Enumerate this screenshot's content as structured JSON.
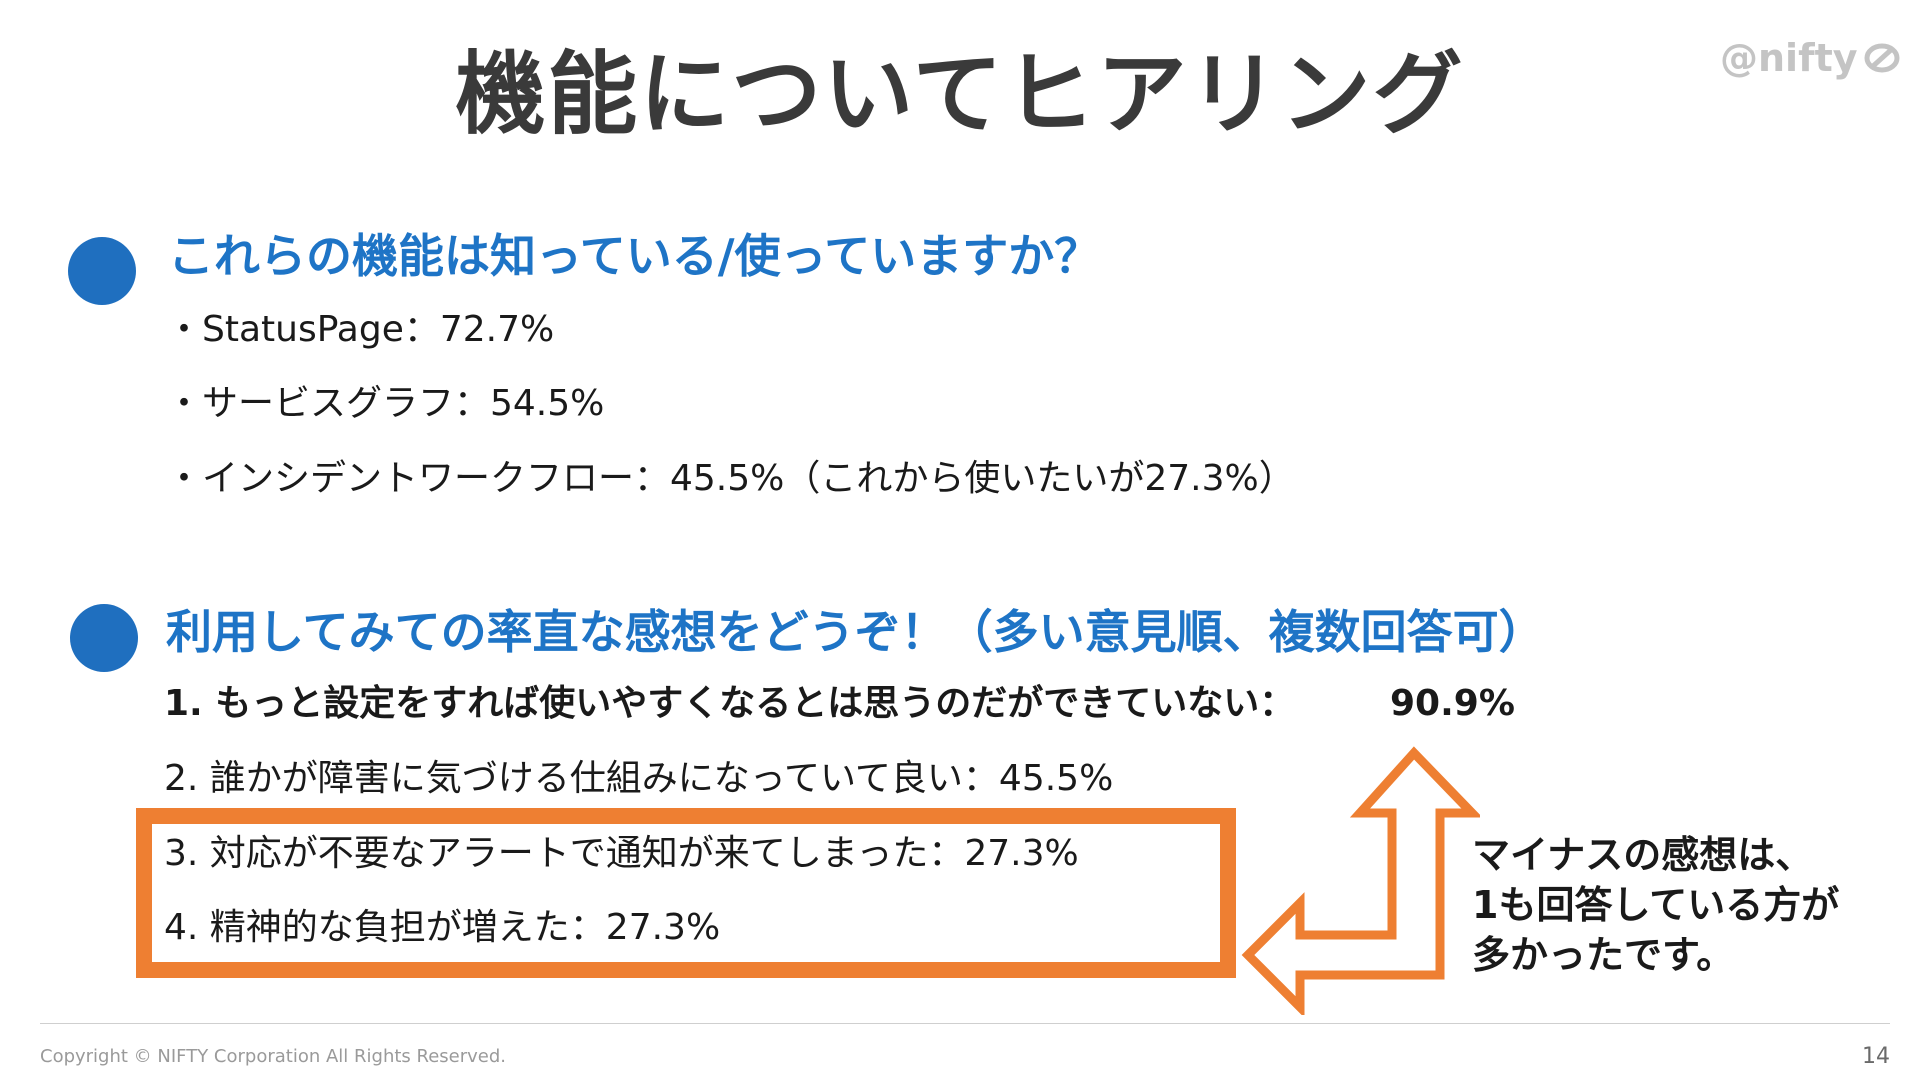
{
  "slide": {
    "title": "機能についてヒアリング",
    "logo_text": "@nifty",
    "page_number": "14",
    "copyright": "Copyright © NIFTY Corporation All Rights Reserved."
  },
  "section1": {
    "heading": "これらの機能は知っている/使っていますか？",
    "items": [
      "・StatusPage：72.7%",
      "・サービスグラフ：54.5%",
      "・インシデントワークフロー：45.5%（これから使いたいが27.3%）"
    ]
  },
  "section2": {
    "heading": "利用してみての率直な感想をどうぞ！（多い意見順、複数回答可）",
    "items": [
      {
        "text": "1.  もっと設定をすれば使いやすくなるとは思うのだができていない：",
        "value": "90.9%"
      },
      {
        "text": "2. 誰かが障害に気づける仕組みになっていて良い：45.5%"
      },
      {
        "text": "3. 対応が不要なアラートで通知が来てしまった：27.3%"
      },
      {
        "text": "4. 精神的な負担が増えた：27.3%"
      }
    ],
    "note_lines": [
      "マイナスの感想は、",
      "1も回答している方が",
      "多かったです。"
    ]
  },
  "colors": {
    "heading_blue": "#1e74c6",
    "bullet_blue": "#1f6fbf",
    "accent_orange": "#ee7f32",
    "title_gray": "#3a3a3a"
  }
}
